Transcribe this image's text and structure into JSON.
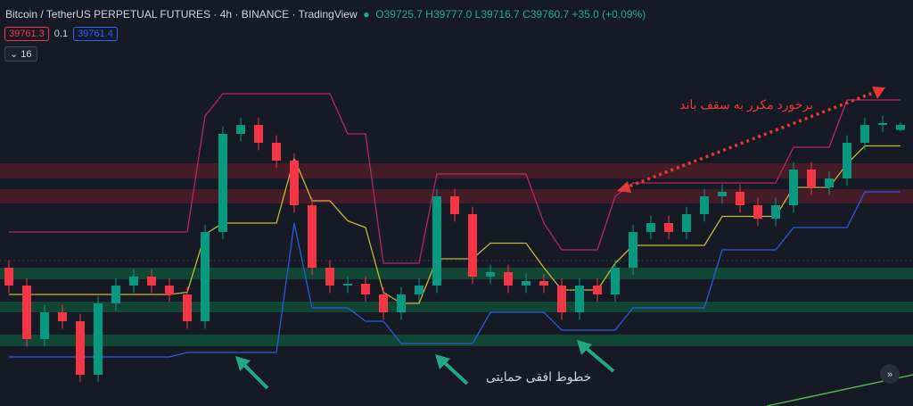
{
  "header": {
    "symbol": "Bitcoin / TetherUS PERPETUAL FUTURES",
    "interval": "4h",
    "exchange": "BINANCE",
    "source": "TradingView",
    "ohlc": {
      "o": "O39725.7",
      "h": "H39777.0",
      "l": "L39716.7",
      "c": "C39760.7",
      "change": "+35.0 (+0.09%)"
    },
    "sell": "39761.3",
    "spread": "0.1",
    "buy": "39761.4",
    "indicators": "16"
  },
  "annotations": {
    "resistance": "برخورد مکرر به سقف باند",
    "support": "خطوط افقی حمایتی"
  },
  "chart_data": {
    "type": "candlestick",
    "up_color": "#089981",
    "down_color": "#f23645",
    "ylim": [
      37870,
      40600
    ],
    "open": [
      38800,
      38680,
      38320,
      38500,
      38440,
      38080,
      38560,
      38680,
      38740,
      38680,
      38620,
      38440,
      39040,
      39700,
      39760,
      39640,
      39520,
      39220,
      38800,
      38680,
      38692,
      38620,
      38500,
      38620,
      38680,
      39280,
      39160,
      38740,
      38770,
      38680,
      38710,
      38680,
      38500,
      38680,
      38620,
      38800,
      39040,
      39100,
      39040,
      39160,
      39280,
      39310,
      39220,
      39130,
      39220,
      39460,
      39340,
      39400,
      39640,
      39760,
      39725.7
    ],
    "high": [
      38850,
      38730,
      38550,
      38550,
      38490,
      38610,
      38730,
      38790,
      38790,
      38730,
      38670,
      39090,
      39750,
      39810,
      39810,
      39690,
      39570,
      39270,
      38850,
      38742,
      38742,
      38670,
      38670,
      38730,
      39330,
      39330,
      39210,
      38820,
      38820,
      38760,
      38760,
      38730,
      38730,
      38730,
      38850,
      39090,
      39150,
      39150,
      39210,
      39330,
      39360,
      39360,
      39270,
      39270,
      39510,
      39510,
      39450,
      39690,
      39810,
      39822,
      39777
    ],
    "low": [
      38630,
      38270,
      38270,
      38390,
      38030,
      38030,
      38510,
      38630,
      38630,
      38570,
      38390,
      38390,
      38990,
      39650,
      39590,
      39470,
      39170,
      38750,
      38630,
      38630,
      38570,
      38450,
      38450,
      38570,
      38630,
      39110,
      38690,
      38690,
      38630,
      38630,
      38630,
      38450,
      38450,
      38570,
      38570,
      38750,
      38990,
      38990,
      38990,
      39110,
      39230,
      39170,
      39080,
      39080,
      39170,
      39290,
      39290,
      39350,
      39590,
      39710,
      39716.7
    ],
    "close": [
      38680,
      38320,
      38500,
      38440,
      38080,
      38560,
      38680,
      38740,
      38680,
      38620,
      38440,
      39040,
      39700,
      39760,
      39640,
      39520,
      39220,
      38800,
      38680,
      38692,
      38620,
      38500,
      38620,
      38680,
      39280,
      39160,
      38740,
      38770,
      38680,
      38710,
      38680,
      38500,
      38680,
      38620,
      38800,
      39040,
      39100,
      39040,
      39160,
      39280,
      39310,
      39220,
      39130,
      39220,
      39460,
      39340,
      39400,
      39640,
      39760,
      39772,
      39760.7
    ],
    "series": [
      {
        "name": "Upper",
        "color": "#b2285f",
        "values": [
          39040,
          39040,
          39040,
          39040,
          39040,
          39040,
          39040,
          39040,
          39040,
          39040,
          39040,
          39820,
          39970,
          39970,
          39970,
          39970,
          39970,
          39970,
          39970,
          39700,
          39700,
          38830,
          38830,
          38830,
          39430,
          39430,
          39430,
          39430,
          39430,
          39430,
          39100,
          38920,
          38920,
          38920,
          39280,
          39370,
          39370,
          39370,
          39370,
          39370,
          39370,
          39370,
          39370,
          39370,
          39610,
          39610,
          39610,
          39928,
          39928,
          39928,
          39928
        ]
      },
      {
        "name": "Basis",
        "color": "#c9b53a",
        "values": [
          38620,
          38620,
          38620,
          38620,
          38620,
          38620,
          38620,
          38620,
          38620,
          38620,
          38635,
          39025,
          39100,
          39100,
          39100,
          39100,
          39535,
          39250,
          39250,
          39115,
          39070,
          38635,
          38560,
          38560,
          38860,
          38860,
          38860,
          38965,
          38965,
          38965,
          38800,
          38650,
          38650,
          38650,
          38830,
          38950,
          38950,
          38950,
          38950,
          38950,
          39145,
          39145,
          39145,
          39145,
          39340,
          39340,
          39340,
          39499,
          39619,
          39619,
          39619
        ]
      },
      {
        "name": "Lower",
        "color": "#2a5bd7",
        "values": [
          38200,
          38200,
          38200,
          38200,
          38200,
          38200,
          38200,
          38200,
          38200,
          38200,
          38230,
          38230,
          38230,
          38230,
          38230,
          38230,
          39100,
          38530,
          38530,
          38530,
          38440,
          38440,
          38290,
          38290,
          38290,
          38290,
          38290,
          38500,
          38500,
          38500,
          38500,
          38380,
          38380,
          38380,
          38380,
          38530,
          38530,
          38530,
          38530,
          38530,
          38920,
          38920,
          38920,
          38920,
          39070,
          39070,
          39070,
          39070,
          39310,
          39310,
          39310
        ]
      }
    ]
  }
}
